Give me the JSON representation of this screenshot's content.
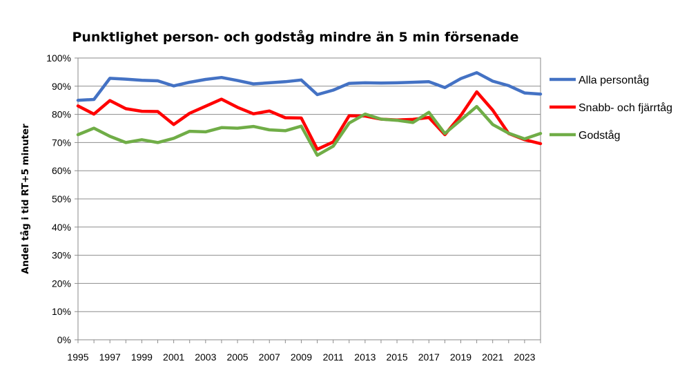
{
  "chart_data": {
    "type": "line",
    "title": "Punktlighet person- och godståg mindre än 5 min försenade",
    "xlabel": "",
    "ylabel": "Andel tåg i tid RT+5 minuter",
    "ylim": [
      0,
      100
    ],
    "yticks": [
      "0%",
      "10%",
      "20%",
      "30%",
      "40%",
      "50%",
      "60%",
      "70%",
      "80%",
      "90%",
      "100%"
    ],
    "xticks": [
      "1995",
      "1997",
      "1999",
      "2001",
      "2003",
      "2005",
      "2007",
      "2009",
      "2011",
      "2013",
      "2015",
      "2017",
      "2019",
      "2021",
      "2023"
    ],
    "grid": true,
    "legend_position": "right",
    "x": [
      1995,
      1996,
      1997,
      1998,
      1999,
      2000,
      2001,
      2002,
      2003,
      2004,
      2005,
      2006,
      2007,
      2008,
      2009,
      2010,
      2011,
      2012,
      2013,
      2014,
      2015,
      2016,
      2017,
      2018,
      2019,
      2020,
      2021,
      2022,
      2023,
      2024
    ],
    "series": [
      {
        "name": "Alla persontåg",
        "color": "#4472C4",
        "values": [
          85.0,
          85.3,
          92.8,
          92.5,
          92.1,
          91.9,
          90.1,
          91.4,
          92.4,
          93.1,
          92.0,
          90.8,
          91.2,
          91.6,
          92.2,
          87.0,
          88.6,
          91.0,
          91.2,
          91.1,
          91.2,
          91.4,
          91.6,
          89.5,
          92.7,
          94.8,
          91.8,
          90.2,
          87.6,
          87.2
        ]
      },
      {
        "name": "Snabb- och fjärrtåg",
        "color": "#FF0000",
        "values": [
          83.0,
          80.1,
          84.9,
          82.0,
          81.1,
          81.0,
          76.4,
          80.4,
          82.9,
          85.4,
          82.5,
          80.2,
          81.2,
          78.8,
          78.7,
          67.6,
          70.2,
          79.5,
          79.4,
          78.3,
          78.0,
          78.2,
          78.9,
          72.8,
          79.6,
          88.0,
          81.5,
          73.2,
          71.0,
          69.6
        ]
      },
      {
        "name": "Godståg",
        "color": "#70AD47",
        "values": [
          72.8,
          75.1,
          72.2,
          70.0,
          71.0,
          70.0,
          71.5,
          74.0,
          73.8,
          75.3,
          75.1,
          75.7,
          74.5,
          74.2,
          75.8,
          65.5,
          68.7,
          76.9,
          80.1,
          78.3,
          77.9,
          77.1,
          80.7,
          73.2,
          78.0,
          82.8,
          76.4,
          73.3,
          71.3,
          73.2
        ]
      }
    ]
  }
}
